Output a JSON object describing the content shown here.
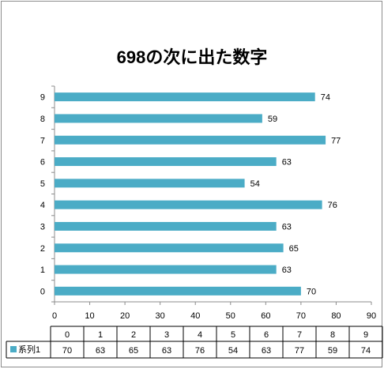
{
  "chart_data": {
    "type": "bar",
    "orientation": "horizontal",
    "title": "698の次に出た数字",
    "categories": [
      "0",
      "1",
      "2",
      "3",
      "4",
      "5",
      "6",
      "7",
      "8",
      "9"
    ],
    "series": [
      {
        "name": "系列1",
        "values": [
          70,
          63,
          65,
          63,
          76,
          54,
          63,
          77,
          59,
          74
        ],
        "color": "#4bacc6"
      }
    ],
    "xlim": [
      0,
      90
    ],
    "x_ticks": [
      0,
      10,
      20,
      30,
      40,
      50,
      60,
      70,
      80,
      90
    ],
    "grid": false,
    "data_labels": true,
    "data_table": true
  }
}
